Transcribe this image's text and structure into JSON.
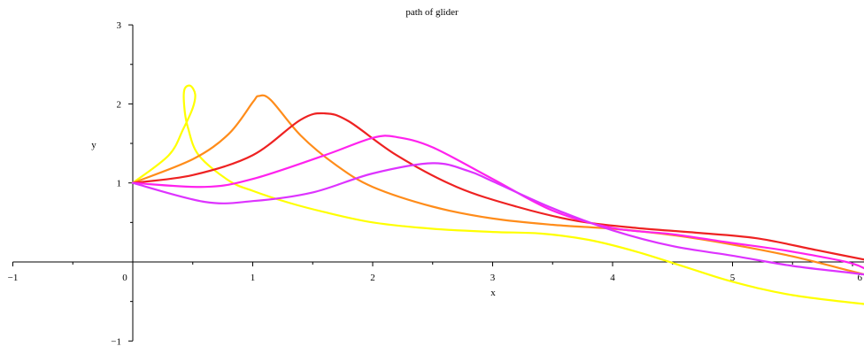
{
  "chart_data": {
    "type": "line",
    "title": "path of glider",
    "xlabel": "x",
    "ylabel": "y",
    "xlim": [
      -1,
      6.2
    ],
    "ylim": [
      -1,
      3
    ],
    "grid": false,
    "legend": "none",
    "x_ticks": [
      {
        "value": -1,
        "label": "−1"
      },
      {
        "value": 0,
        "label": "0"
      },
      {
        "value": 1,
        "label": "1"
      },
      {
        "value": 2,
        "label": "2"
      },
      {
        "value": 3,
        "label": "3"
      },
      {
        "value": 4,
        "label": "4"
      },
      {
        "value": 5,
        "label": "5"
      },
      {
        "value": 6,
        "label": "6"
      }
    ],
    "y_ticks": [
      {
        "value": -1,
        "label": "−1"
      },
      {
        "value": 1,
        "label": "1"
      },
      {
        "value": 2,
        "label": "2"
      },
      {
        "value": 3,
        "label": "3"
      }
    ],
    "series": [
      {
        "color": "#ffff00",
        "points": [
          [
            0,
            1
          ],
          [
            0.3,
            1.35
          ],
          [
            0.42,
            1.68
          ],
          [
            0.5,
            1.95
          ],
          [
            0.52,
            2.12
          ],
          [
            0.48,
            2.23
          ],
          [
            0.43,
            2.18
          ],
          [
            0.43,
            1.95
          ],
          [
            0.46,
            1.7
          ],
          [
            0.55,
            1.35
          ],
          [
            0.8,
            1.03
          ],
          [
            1.0,
            0.9
          ],
          [
            1.3,
            0.75
          ],
          [
            1.6,
            0.63
          ],
          [
            2.0,
            0.5
          ],
          [
            2.5,
            0.42
          ],
          [
            3.0,
            0.38
          ],
          [
            3.4,
            0.36
          ],
          [
            3.8,
            0.28
          ],
          [
            4.2,
            0.13
          ],
          [
            4.6,
            -0.06
          ],
          [
            5.0,
            -0.25
          ],
          [
            5.5,
            -0.42
          ],
          [
            6.2,
            -0.55
          ]
        ]
      },
      {
        "color": "#ff8c1a",
        "points": [
          [
            0,
            1
          ],
          [
            0.5,
            1.3
          ],
          [
            0.8,
            1.62
          ],
          [
            1.0,
            2.02
          ],
          [
            1.05,
            2.1
          ],
          [
            1.15,
            2.05
          ],
          [
            1.4,
            1.6
          ],
          [
            1.7,
            1.22
          ],
          [
            2.0,
            0.95
          ],
          [
            2.5,
            0.7
          ],
          [
            3.0,
            0.55
          ],
          [
            3.5,
            0.47
          ],
          [
            4.0,
            0.42
          ],
          [
            4.5,
            0.34
          ],
          [
            5.0,
            0.22
          ],
          [
            5.5,
            0.07
          ],
          [
            6.0,
            -0.12
          ],
          [
            6.2,
            -0.2
          ]
        ]
      },
      {
        "color": "#ee2222",
        "points": [
          [
            0,
            1
          ],
          [
            0.5,
            1.1
          ],
          [
            1.0,
            1.35
          ],
          [
            1.4,
            1.8
          ],
          [
            1.6,
            1.88
          ],
          [
            1.8,
            1.78
          ],
          [
            2.2,
            1.35
          ],
          [
            2.7,
            0.95
          ],
          [
            3.2,
            0.7
          ],
          [
            3.7,
            0.52
          ],
          [
            4.2,
            0.43
          ],
          [
            4.7,
            0.37
          ],
          [
            5.2,
            0.3
          ],
          [
            5.7,
            0.15
          ],
          [
            6.2,
            0.0
          ]
        ]
      },
      {
        "color": "#ff22ee",
        "points": [
          [
            0,
            1
          ],
          [
            0.6,
            0.95
          ],
          [
            1.0,
            1.05
          ],
          [
            1.6,
            1.35
          ],
          [
            2.0,
            1.57
          ],
          [
            2.2,
            1.58
          ],
          [
            2.5,
            1.45
          ],
          [
            3.0,
            1.05
          ],
          [
            3.5,
            0.65
          ],
          [
            4.0,
            0.43
          ],
          [
            4.5,
            0.35
          ],
          [
            5.0,
            0.24
          ],
          [
            5.5,
            0.13
          ],
          [
            6.0,
            -0.02
          ],
          [
            6.2,
            -0.18
          ]
        ]
      },
      {
        "color": "#dd33ff",
        "points": [
          [
            0,
            1
          ],
          [
            0.6,
            0.76
          ],
          [
            1.0,
            0.77
          ],
          [
            1.5,
            0.88
          ],
          [
            2.0,
            1.12
          ],
          [
            2.5,
            1.25
          ],
          [
            2.8,
            1.15
          ],
          [
            3.0,
            1.02
          ],
          [
            3.5,
            0.68
          ],
          [
            4.0,
            0.4
          ],
          [
            4.5,
            0.2
          ],
          [
            5.0,
            0.08
          ],
          [
            5.5,
            -0.05
          ],
          [
            6.0,
            -0.14
          ],
          [
            6.2,
            -0.18
          ]
        ]
      }
    ]
  }
}
